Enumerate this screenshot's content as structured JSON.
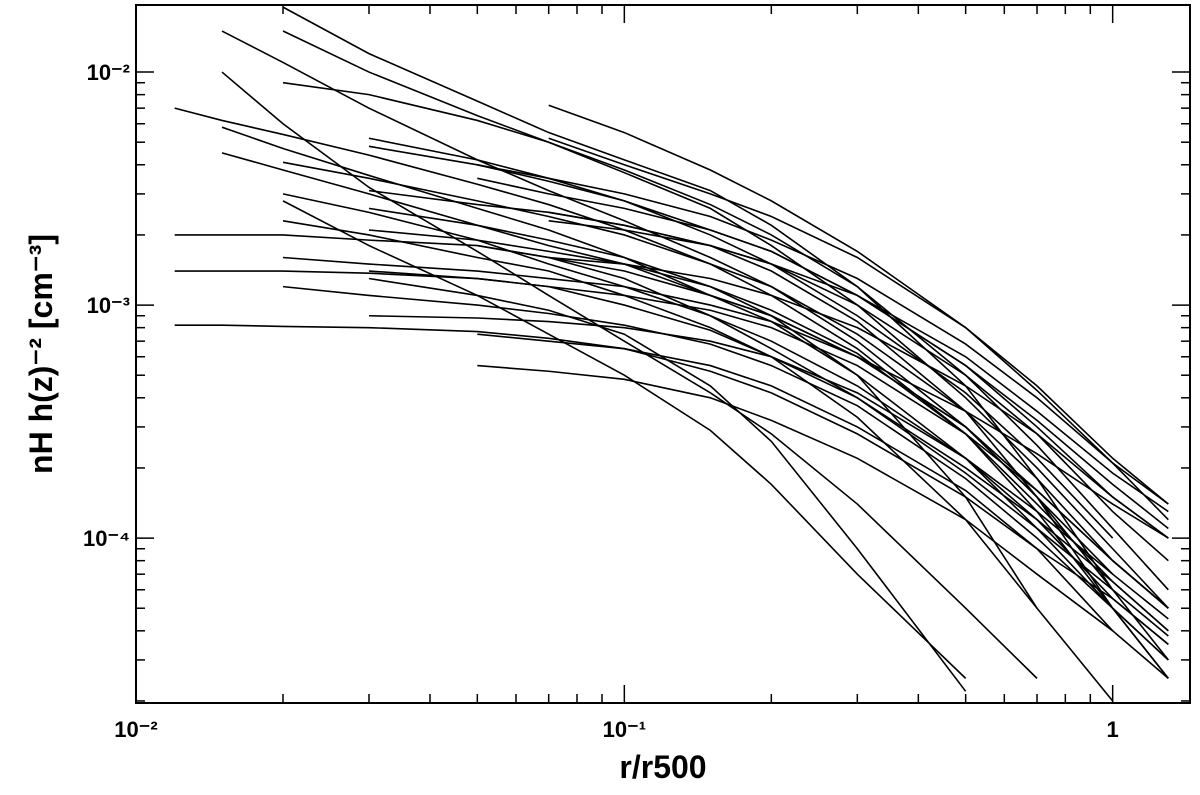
{
  "chart_data": {
    "type": "line",
    "xlabel": "r/r500",
    "ylabel": "nH h(z)⁻² [cm⁻³]",
    "xscale": "log",
    "yscale": "log",
    "xlim": [
      0.01,
      1.44
    ],
    "ylim": [
      1.96e-05,
      0.0194
    ],
    "xticks": [
      {
        "value": 0.01,
        "label": "10⁻²"
      },
      {
        "value": 0.1,
        "label": "10⁻¹"
      },
      1
    ],
    "yticks": [
      {
        "value": 0.0001,
        "label": "10⁻⁴"
      },
      {
        "value": 0.001,
        "label": "10⁻³"
      },
      {
        "value": 0.01,
        "label": "10⁻²"
      }
    ],
    "xminorticks": [
      0.02,
      0.03,
      0.04,
      0.05,
      0.06,
      0.07,
      0.08,
      0.09,
      0.2,
      0.3,
      0.4,
      0.5,
      0.6,
      0.7,
      0.8,
      0.9
    ],
    "yminorticks": [
      2e-05,
      3e-05,
      4e-05,
      5e-05,
      6e-05,
      7e-05,
      8e-05,
      9e-05,
      0.0002,
      0.0003,
      0.0004,
      0.0005,
      0.0006,
      0.0007,
      0.0008,
      0.0009,
      0.002,
      0.003,
      0.004,
      0.005,
      0.006,
      0.007,
      0.008,
      0.009
    ],
    "grid": false,
    "x": [
      0.012,
      0.015,
      0.02,
      0.03,
      0.05,
      0.07,
      0.1,
      0.15,
      0.2,
      0.3,
      0.5,
      0.7,
      1.0,
      1.3
    ],
    "series": [
      {
        "color": "#000000",
        "values": [
          0.00082,
          0.00082,
          0.00081,
          0.0008,
          0.00077,
          0.00072,
          0.00065,
          0.00052,
          0.00042,
          0.00028,
          0.00015,
          9e-05,
          5.5e-05,
          3.5e-05
        ]
      },
      {
        "color": "#000000",
        "values": [
          0.002,
          0.002,
          0.002,
          0.0019,
          0.0018,
          0.0016,
          0.0013,
          0.0009,
          0.00065,
          0.0004,
          0.00019,
          0.00011,
          6e-05,
          3.8e-05
        ]
      },
      {
        "color": "#000000",
        "values": [
          0.0014,
          0.0014,
          0.0014,
          0.00137,
          0.0013,
          0.0012,
          0.001,
          0.00078,
          0.0006,
          0.0004,
          0.0002,
          0.00012,
          6.5e-05,
          4e-05
        ]
      },
      {
        "color": "#000000",
        "values": [
          0.007,
          0.0062,
          0.0054,
          0.0044,
          0.0033,
          0.0027,
          0.0021,
          0.0015,
          0.0011,
          0.00065,
          0.00028,
          0.00014,
          6.5e-05,
          4e-05
        ]
      },
      {
        "color": "#000000",
        "values": [
          null,
          0.015,
          0.011,
          0.007,
          0.0042,
          0.0031,
          0.0023,
          0.0016,
          0.0012,
          0.0007,
          0.0003,
          0.00015,
          7e-05,
          null
        ]
      },
      {
        "color": "#000000",
        "values": [
          null,
          null,
          0.015,
          0.01,
          0.0065,
          0.005,
          0.0037,
          0.0026,
          0.0018,
          0.001,
          0.0004,
          0.0002,
          9e-05,
          5e-05
        ]
      },
      {
        "color": "#000000",
        "values": [
          null,
          null,
          0.019,
          0.012,
          0.0075,
          0.0055,
          0.0042,
          0.0031,
          0.0022,
          0.0012,
          0.00045,
          0.00018,
          6e-05,
          null
        ]
      },
      {
        "color": "#000000",
        "values": [
          null,
          0.01,
          0.006,
          0.0032,
          0.0017,
          0.0011,
          0.0007,
          0.00042,
          0.00028,
          0.00014,
          5e-05,
          2.5e-05,
          null,
          null
        ]
      },
      {
        "color": "#000000",
        "values": [
          null,
          null,
          0.0028,
          0.0018,
          0.0011,
          0.00075,
          0.0005,
          0.00029,
          0.00017,
          7e-05,
          2.5e-05,
          null,
          null,
          null
        ]
      },
      {
        "color": "#000000",
        "values": [
          null,
          null,
          null,
          0.0013,
          0.0011,
          0.00095,
          0.00075,
          0.00045,
          0.00026,
          9e-05,
          2.2e-05,
          null,
          null,
          null
        ]
      },
      {
        "color": "#000000",
        "values": [
          null,
          null,
          0.0023,
          0.002,
          0.0016,
          0.0014,
          0.0011,
          0.0008,
          0.0006,
          0.00033,
          0.00012,
          5e-05,
          2e-05,
          null
        ]
      },
      {
        "color": "#000000",
        "values": [
          null,
          0.0058,
          0.0047,
          0.0036,
          0.0026,
          0.0021,
          0.0016,
          0.0011,
          0.00085,
          0.0005,
          0.00022,
          0.00011,
          5e-05,
          3e-05
        ]
      },
      {
        "color": "#000000",
        "values": [
          null,
          null,
          0.0041,
          0.0035,
          0.0028,
          0.0024,
          0.002,
          0.0015,
          0.0012,
          0.00075,
          0.00035,
          0.00018,
          8e-05,
          5e-05
        ]
      },
      {
        "color": "#000000",
        "values": [
          null,
          null,
          null,
          0.0031,
          0.0027,
          0.0025,
          0.0022,
          0.0018,
          0.0015,
          0.001,
          0.0005,
          0.00028,
          0.00013,
          8e-05
        ]
      },
      {
        "color": "#000000",
        "values": [
          null,
          null,
          null,
          null,
          0.0035,
          0.003,
          0.0026,
          0.0021,
          0.0017,
          0.0011,
          0.00055,
          0.00032,
          0.00017,
          0.00011
        ]
      },
      {
        "color": "#000000",
        "values": [
          null,
          null,
          null,
          0.0014,
          0.0013,
          0.0012,
          0.0011,
          0.00095,
          0.0008,
          0.00055,
          0.00028,
          0.00016,
          8e-05,
          5e-05
        ]
      },
      {
        "color": "#000000",
        "values": [
          null,
          null,
          0.0012,
          0.0011,
          0.001,
          0.00092,
          0.00082,
          0.00068,
          0.00055,
          0.00037,
          0.00018,
          0.0001,
          5e-05,
          3e-05
        ]
      },
      {
        "color": "#000000",
        "values": [
          null,
          null,
          null,
          null,
          0.00055,
          0.00052,
          0.00048,
          0.0004,
          0.00032,
          0.00022,
          0.00012,
          7e-05,
          4e-05,
          2.5e-05
        ]
      },
      {
        "color": "#000000",
        "values": [
          null,
          null,
          0.009,
          0.008,
          0.0062,
          0.005,
          0.0038,
          0.0027,
          0.002,
          0.0012,
          0.0005,
          0.00025,
          0.00011,
          6e-05
        ]
      },
      {
        "color": "#000000",
        "values": [
          null,
          null,
          null,
          0.0052,
          0.0042,
          0.0035,
          0.0028,
          0.002,
          0.0015,
          0.0009,
          0.00042,
          0.00022,
          0.0001,
          null
        ]
      },
      {
        "color": "#000000",
        "values": [
          null,
          null,
          null,
          null,
          null,
          0.0023,
          0.0021,
          0.0018,
          0.0015,
          0.0011,
          0.0006,
          0.00035,
          0.00019,
          0.00013
        ]
      },
      {
        "color": "#000000",
        "values": [
          null,
          null,
          null,
          0.0021,
          0.0019,
          0.0017,
          0.0015,
          0.0012,
          0.00095,
          0.00062,
          0.00028,
          0.00013,
          5e-05,
          2.5e-05
        ]
      },
      {
        "color": "#000000",
        "values": [
          null,
          null,
          null,
          0.0026,
          0.0022,
          0.0019,
          0.0016,
          0.0012,
          0.0009,
          0.0005,
          0.00015,
          5e-05,
          null,
          null
        ]
      },
      {
        "color": "#000000",
        "values": [
          null,
          null,
          0.0016,
          0.0015,
          0.0014,
          0.0013,
          0.0012,
          0.001,
          0.00085,
          0.0006,
          0.00035,
          0.00023,
          0.00014,
          0.0001
        ]
      },
      {
        "color": "#000000",
        "values": [
          null,
          null,
          0.003,
          0.0025,
          0.0019,
          0.0015,
          0.0012,
          0.0009,
          0.0007,
          0.00045,
          0.00022,
          0.00013,
          7e-05,
          4.5e-05
        ]
      },
      {
        "color": "#000000",
        "values": [
          null,
          null,
          null,
          null,
          0.0018,
          0.0016,
          0.0014,
          0.0011,
          0.0009,
          0.0006,
          0.0003,
          0.00015,
          6e-05,
          3e-05
        ]
      },
      {
        "color": "#000000",
        "values": [
          null,
          0.0045,
          0.0038,
          0.003,
          0.0022,
          0.0018,
          0.0015,
          0.0011,
          0.0009,
          0.0006,
          0.0003,
          0.00016,
          8e-05,
          5e-05
        ]
      },
      {
        "color": "#000000",
        "values": [
          null,
          null,
          null,
          null,
          null,
          0.0016,
          0.0015,
          0.0013,
          0.0011,
          0.0008,
          0.00045,
          0.00028,
          0.00015,
          0.0001
        ]
      },
      {
        "color": "#000000",
        "values": [
          null,
          null,
          null,
          0.0009,
          0.00088,
          0.00085,
          0.0008,
          0.0007,
          0.0006,
          0.00042,
          0.00022,
          0.00012,
          5.5e-05,
          3.5e-05
        ]
      },
      {
        "color": "#000000",
        "values": [
          null,
          null,
          null,
          null,
          0.00075,
          0.0007,
          0.00065,
          0.00055,
          0.00045,
          0.0003,
          0.00016,
          9e-05,
          4e-05,
          null
        ]
      },
      {
        "color": "#000000",
        "values": [
          null,
          null,
          null,
          null,
          null,
          0.0052,
          0.004,
          0.003,
          0.0024,
          0.0016,
          0.0008,
          0.00045,
          0.00022,
          0.00014
        ]
      },
      {
        "color": "#000000",
        "values": [
          null,
          null,
          null,
          null,
          null,
          0.0072,
          0.0055,
          0.0038,
          0.0028,
          0.0017,
          0.0008,
          0.00043,
          0.00021,
          0.00012
        ]
      },
      {
        "color": "#000000",
        "values": [
          null,
          null,
          null,
          0.0048,
          0.004,
          0.0034,
          0.0028,
          0.0021,
          0.0017,
          0.0011,
          0.00055,
          0.0003,
          0.00015,
          0.0001
        ]
      },
      {
        "color": "#000000",
        "values": [
          null,
          null,
          null,
          null,
          0.004,
          0.0035,
          0.003,
          0.0024,
          0.0019,
          0.0013,
          0.00068,
          0.0004,
          0.00021,
          0.00014
        ]
      },
      {
        "color": "#000000",
        "values": [
          null,
          null,
          null,
          null,
          null,
          0.0025,
          0.0022,
          0.0018,
          0.0014,
          0.00085,
          0.00035,
          0.00015,
          5e-05,
          2.5e-05
        ]
      }
    ]
  }
}
